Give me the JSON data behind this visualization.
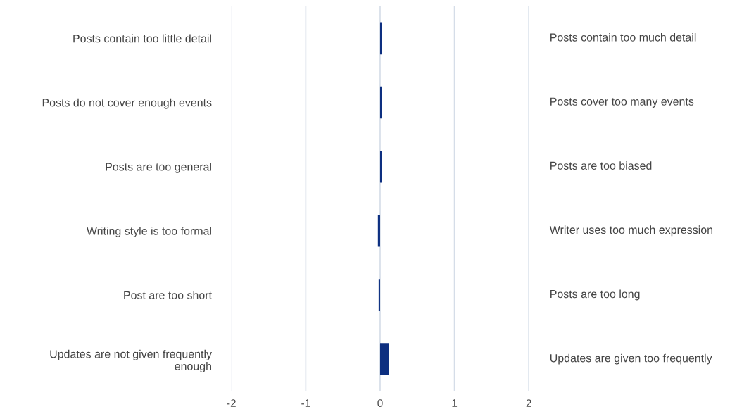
{
  "chart_data": {
    "type": "bar",
    "orientation": "horizontal",
    "categories": [
      "Posts contain too little detail",
      "Posts do not cover enough events",
      "Posts are too general",
      "Writing style is too formal",
      "Post are too short",
      "Updates are not given frequently\nenough"
    ],
    "values": [
      0.02,
      0.02,
      0.02,
      -0.03,
      -0.02,
      0.12
    ],
    "color": "#0d2f80",
    "xlim": [
      -2,
      2
    ],
    "xticks": [
      -2,
      -1,
      0,
      1,
      2
    ],
    "grid": "x",
    "annotations": [
      "Posts contain too much detail",
      "Posts cover too many events",
      "Posts are too biased",
      "Writer uses too much expression",
      "Posts are too long",
      "Updates are given too frequently"
    ]
  }
}
